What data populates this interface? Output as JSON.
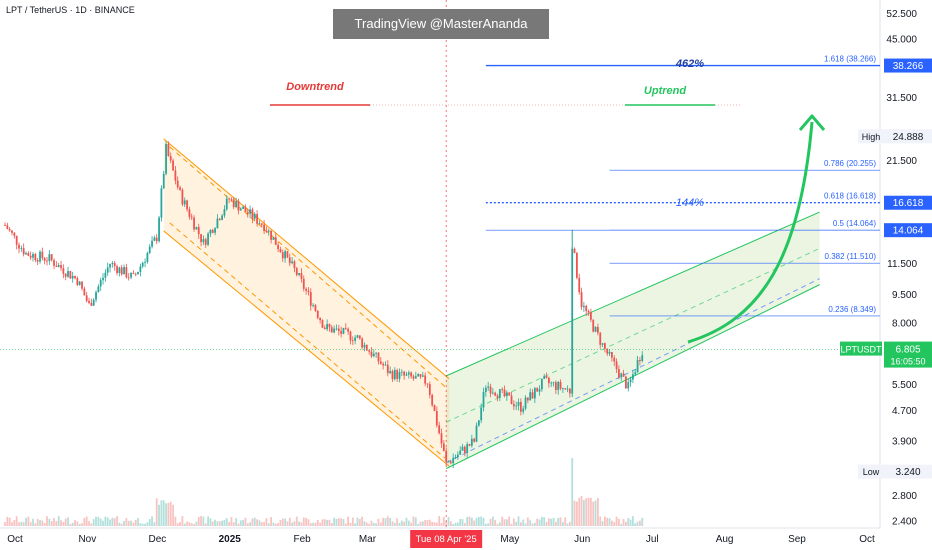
{
  "header": {
    "symbol_title": "LPT / TetherUS · 1D · BINANCE",
    "watermark": "TradingView @MasterAnanda"
  },
  "colors": {
    "up": "#26a69a",
    "down": "#ef5350",
    "fib": "#2962ff",
    "channel": "#ff9800",
    "uptrend": "#22c55e",
    "downtrend_label": "#e53935",
    "badge_green": "#22c55e",
    "date_badge": "#f23645"
  },
  "chart_data": {
    "type": "candlestick",
    "title": "LPT / TetherUS · 1D · BINANCE",
    "xlabel": "",
    "ylabel": "",
    "y_scale": "log",
    "ylim": [
      2.3,
      57
    ],
    "x_range": [
      "2024-10-01",
      "2025-10-10"
    ],
    "y_ticks": [
      "52.500",
      "45.000",
      "38.266",
      "31.500",
      "24.888",
      "21.500",
      "16.618",
      "14.064",
      "11.500",
      "9.500",
      "8.000",
      "6.805",
      "5.500",
      "4.700",
      "3.900",
      "3.240",
      "2.800",
      "2.400"
    ],
    "x_ticks": [
      "Oct",
      "Nov",
      "Dec",
      "2025",
      "Feb",
      "Mar",
      "Tue 08 Apr '25",
      "May",
      "Jun",
      "Jul",
      "Aug",
      "Sep",
      "Oct"
    ],
    "price_path": [
      {
        "date": "2024-10-01",
        "close": 14.5
      },
      {
        "date": "2024-10-10",
        "close": 12.2
      },
      {
        "date": "2024-10-20",
        "close": 11.8
      },
      {
        "date": "2024-11-01",
        "close": 10.4
      },
      {
        "date": "2024-11-06",
        "close": 8.9
      },
      {
        "date": "2024-11-15",
        "close": 11.5
      },
      {
        "date": "2024-11-25",
        "close": 10.5
      },
      {
        "date": "2024-12-05",
        "close": 13.5
      },
      {
        "date": "2024-12-09",
        "close": 23.0
      },
      {
        "date": "2024-12-15",
        "close": 17.5
      },
      {
        "date": "2024-12-25",
        "close": 13.0
      },
      {
        "date": "2025-01-05",
        "close": 17.0
      },
      {
        "date": "2025-01-20",
        "close": 14.5
      },
      {
        "date": "2025-02-03",
        "close": 10.8
      },
      {
        "date": "2025-02-15",
        "close": 7.8
      },
      {
        "date": "2025-03-01",
        "close": 7.3
      },
      {
        "date": "2025-03-15",
        "close": 5.9
      },
      {
        "date": "2025-03-31",
        "close": 5.6
      },
      {
        "date": "2025-04-08",
        "close": 3.4
      },
      {
        "date": "2025-04-20",
        "close": 3.9
      },
      {
        "date": "2025-04-25",
        "close": 5.5
      },
      {
        "date": "2025-05-10",
        "close": 4.8
      },
      {
        "date": "2025-05-20",
        "close": 5.6
      },
      {
        "date": "2025-05-31",
        "close": 5.3
      },
      {
        "date": "2025-06-01",
        "close": 13.0
      },
      {
        "date": "2025-06-05",
        "close": 9.0
      },
      {
        "date": "2025-06-15",
        "close": 6.8
      },
      {
        "date": "2025-06-25",
        "close": 5.4
      },
      {
        "date": "2025-07-01",
        "close": 6.805
      }
    ],
    "fib_levels": [
      {
        "label": "1.618 (38.266)",
        "value": 38.266
      },
      {
        "label": "0.786 (20.255)",
        "value": 20.255
      },
      {
        "label": "0.618 (16.618)",
        "value": 16.618
      },
      {
        "label": "0.5 (14.064)",
        "value": 14.064
      },
      {
        "label": "0.382 (11.510)",
        "value": 11.51
      },
      {
        "label": "0.236 (8.349)",
        "value": 8.349
      }
    ],
    "annotations": {
      "downtrend": "Downtrend",
      "uptrend": "Uptrend",
      "pct_462": "462%",
      "pct_144": "144%"
    },
    "badges": {
      "high_label": "High",
      "high_value": "24.888",
      "low_label": "Low",
      "low_value": "3.240",
      "fib_top_value": "38.266",
      "fib_618_value": "16.618",
      "fib_05_value": "14.064",
      "ticker": "LPTUSDT",
      "last_price": "6.805",
      "countdown": "16:05:50",
      "crosshair_date": "Tue 08 Apr '25"
    }
  }
}
